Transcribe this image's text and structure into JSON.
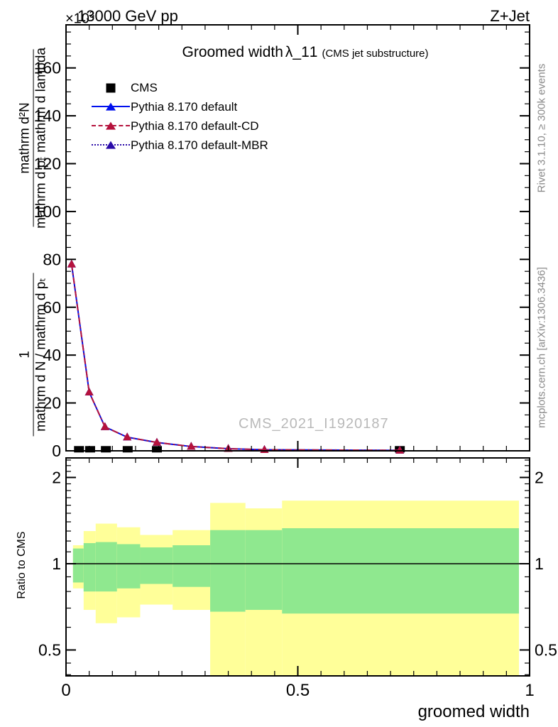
{
  "page": {
    "header_left_scale_base": "×10",
    "header_left_scale_exp": "3",
    "header_left": "13000 GeV pp",
    "header_right": "Z+Jet",
    "watermark": "CMS_2021_I1920187",
    "right_margin_top": "Rivet 3.1.10, ≥ 300k events",
    "right_margin_bottom": "mcplots.cern.ch [arXiv:1306.3436]",
    "colors": {
      "mc_default": "#0010ee",
      "mc_cd": "#b5123c",
      "mc_mbr": "#2a0ba8",
      "data": "#000000",
      "band_green": "#8fe88f",
      "band_yellow": "#ffff99",
      "frame": "#000000"
    }
  },
  "chart_data": [
    {
      "type": "line",
      "title_prefix": "Groomed width",
      "title_symbol": "λ_1",
      "title_sup": "1",
      "subtitle": "(CMS jet substructure)",
      "xlabel": "groomed width",
      "ylabel_upper_num": "mathrm d²N",
      "ylabel_upper_den": "mathrm d pₜ mathrm d lambda",
      "ylabel_lower_num": "1",
      "ylabel_lower_den": "mathrm d N / mathrm d pₜ",
      "y_scale_exponent": "×10³",
      "xlim": [
        0,
        1
      ],
      "ylim": [
        0,
        178
      ],
      "xticks": [
        0,
        0.5,
        1
      ],
      "xtick_labels": [
        "0",
        "0.5",
        "1"
      ],
      "x_minor_step": 0.05,
      "yticks": [
        0,
        20,
        40,
        60,
        80,
        100,
        120,
        140,
        160
      ],
      "y_minor_step": 5,
      "x": [
        0.012,
        0.05,
        0.084,
        0.132,
        0.196,
        0.27,
        0.35,
        0.428,
        0.72
      ],
      "series": [
        {
          "label": "CMS",
          "kind": "data",
          "marker": "square",
          "color": "#000000",
          "x": [
            0.028,
            0.052,
            0.086,
            0.133,
            0.196,
            0.72
          ],
          "values": [
            0.8,
            0.8,
            0.8,
            0.8,
            0.8,
            0.8
          ]
        },
        {
          "label": "Pythia 8.170 default",
          "kind": "mc",
          "line": "solid",
          "marker": "triangle",
          "color": "#0010ee",
          "values": [
            78,
            24.5,
            10,
            5.7,
            3.5,
            1.8,
            0.9,
            0.45,
            0.2
          ]
        },
        {
          "label": "Pythia 8.170 default-CD",
          "kind": "mc",
          "line": "dashdot",
          "marker": "triangle",
          "color": "#b5123c",
          "values": [
            78,
            24.5,
            10,
            5.7,
            3.5,
            1.8,
            0.9,
            0.45,
            0.2
          ]
        },
        {
          "label": "Pythia 8.170 default-MBR",
          "kind": "mc",
          "line": "dotted",
          "marker": "triangle",
          "color": "#2a0ba8",
          "values": [
            78,
            24.5,
            10,
            5.7,
            3.5,
            1.8,
            0.9,
            0.45,
            0.2
          ]
        }
      ],
      "legend_position": "top-left",
      "grid": false
    },
    {
      "type": "band-ratio",
      "ylabel": "Ratio to CMS",
      "y_log": true,
      "ylim": [
        0.4,
        2.35
      ],
      "yticks": [
        0.5,
        1,
        2
      ],
      "ytick_labels": [
        "0.5",
        "1",
        "2"
      ],
      "y_minor": [
        0.41,
        0.45,
        0.5,
        0.6,
        0.7,
        0.8,
        0.9,
        1.1,
        1.2,
        1.3,
        1.4,
        1.5,
        1.6,
        1.7,
        1.8,
        1.9,
        2.1,
        2.2,
        2.3
      ],
      "xlim": [
        0,
        1
      ],
      "xticks": [
        0,
        0.5,
        1
      ],
      "xtick_labels": [
        "0",
        "0.5",
        "1"
      ],
      "x_minor_step": 0.05,
      "ref_line": 1,
      "bins": [
        {
          "x0": 0.015,
          "x1": 0.038,
          "yellow": [
            0.82,
            1.16
          ],
          "green": [
            0.86,
            1.13
          ]
        },
        {
          "x0": 0.038,
          "x1": 0.064,
          "yellow": [
            0.69,
            1.3
          ],
          "green": [
            0.8,
            1.18
          ]
        },
        {
          "x0": 0.064,
          "x1": 0.11,
          "yellow": [
            0.62,
            1.38
          ],
          "green": [
            0.8,
            1.19
          ]
        },
        {
          "x0": 0.11,
          "x1": 0.16,
          "yellow": [
            0.65,
            1.34
          ],
          "green": [
            0.82,
            1.17
          ]
        },
        {
          "x0": 0.16,
          "x1": 0.23,
          "yellow": [
            0.72,
            1.26
          ],
          "green": [
            0.85,
            1.14
          ]
        },
        {
          "x0": 0.23,
          "x1": 0.311,
          "yellow": [
            0.69,
            1.31
          ],
          "green": [
            0.83,
            1.16
          ]
        },
        {
          "x0": 0.311,
          "x1": 0.387,
          "yellow": [
            0.4,
            1.63
          ],
          "green": [
            0.68,
            1.31
          ]
        },
        {
          "x0": 0.387,
          "x1": 0.466,
          "yellow": [
            0.4,
            1.56
          ],
          "green": [
            0.69,
            1.31
          ]
        },
        {
          "x0": 0.466,
          "x1": 0.977,
          "yellow": [
            0.4,
            1.66
          ],
          "green": [
            0.67,
            1.33
          ]
        }
      ]
    }
  ]
}
